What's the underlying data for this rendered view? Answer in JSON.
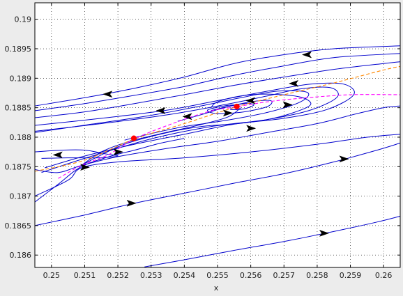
{
  "chart_data": {
    "type": "line",
    "title": "",
    "xlabel": "x",
    "ylabel": "",
    "xlim": [
      0.2495,
      0.2605
    ],
    "ylim": [
      0.18579,
      0.19028
    ],
    "grid": true,
    "xticks": [
      "0.25",
      "0.251",
      "0.252",
      "0.253",
      "0.254",
      "0.255",
      "0.256",
      "0.257",
      "0.258",
      "0.259",
      "0.26"
    ],
    "yticks": [
      "0.186",
      "0.1865",
      "0.187",
      "0.1875",
      "0.188",
      "0.1885",
      "0.189",
      "0.1895",
      "0.19"
    ],
    "colors": {
      "trajectory": "#0000cc",
      "orange_dashed": "#ff8800",
      "magenta_dashed": "#ff00ff",
      "equilibrium": "#ff0000",
      "arrow": "#000000"
    },
    "series": [
      {
        "style": "trajectory",
        "points": [
          [
            0.2495,
            0.18853
          ],
          [
            0.251,
            0.18867
          ],
          [
            0.2525,
            0.18883
          ],
          [
            0.254,
            0.18902
          ],
          [
            0.2555,
            0.18925
          ],
          [
            0.257,
            0.1894
          ],
          [
            0.2585,
            0.1895
          ],
          [
            0.2605,
            0.18955
          ]
        ]
      },
      {
        "style": "trajectory",
        "points": [
          [
            0.2495,
            0.18845
          ],
          [
            0.251,
            0.18857
          ],
          [
            0.2525,
            0.18871
          ],
          [
            0.254,
            0.18886
          ],
          [
            0.2555,
            0.18905
          ],
          [
            0.257,
            0.18921
          ],
          [
            0.2585,
            0.18935
          ],
          [
            0.2605,
            0.18942
          ]
        ]
      },
      {
        "style": "trajectory",
        "points": [
          [
            0.2495,
            0.18833
          ],
          [
            0.251,
            0.18843
          ],
          [
            0.2525,
            0.18857
          ],
          [
            0.254,
            0.18872
          ],
          [
            0.2555,
            0.18888
          ],
          [
            0.257,
            0.18902
          ],
          [
            0.2585,
            0.18915
          ],
          [
            0.26,
            0.18925
          ],
          [
            0.2605,
            0.18928
          ]
        ]
      },
      {
        "style": "trajectory",
        "points": [
          [
            0.2495,
            0.1882
          ],
          [
            0.2515,
            0.18832
          ],
          [
            0.2535,
            0.18846
          ],
          [
            0.255,
            0.18862
          ],
          [
            0.2565,
            0.18878
          ],
          [
            0.2578,
            0.1889
          ],
          [
            0.2588,
            0.1889
          ],
          [
            0.2591,
            0.18872
          ],
          [
            0.2583,
            0.18847
          ],
          [
            0.257,
            0.18832
          ],
          [
            0.2555,
            0.18822
          ],
          [
            0.254,
            0.18805
          ],
          [
            0.2525,
            0.18788
          ],
          [
            0.251,
            0.18768
          ],
          [
            0.2498,
            0.18748
          ]
        ]
      },
      {
        "style": "trajectory",
        "points": [
          [
            0.2495,
            0.1881
          ],
          [
            0.2515,
            0.18823
          ],
          [
            0.2535,
            0.18838
          ],
          [
            0.2552,
            0.18855
          ],
          [
            0.2565,
            0.1887
          ],
          [
            0.2575,
            0.18882
          ],
          [
            0.2584,
            0.18884
          ],
          [
            0.2586,
            0.18868
          ],
          [
            0.2578,
            0.18846
          ],
          [
            0.2565,
            0.1883
          ],
          [
            0.2548,
            0.18818
          ],
          [
            0.2532,
            0.188
          ],
          [
            0.2518,
            0.18778
          ],
          [
            0.2505,
            0.18755
          ],
          [
            0.2497,
            0.1874
          ]
        ]
      },
      {
        "style": "trajectory",
        "points": [
          [
            0.2495,
            0.18808
          ],
          [
            0.2512,
            0.18822
          ],
          [
            0.253,
            0.18837
          ],
          [
            0.2545,
            0.18853
          ],
          [
            0.2558,
            0.18868
          ],
          [
            0.2568,
            0.18878
          ],
          [
            0.2577,
            0.18876
          ],
          [
            0.2575,
            0.1886
          ],
          [
            0.2565,
            0.18842
          ],
          [
            0.2552,
            0.18828
          ],
          [
            0.254,
            0.18818
          ],
          [
            0.253,
            0.18806
          ],
          [
            0.2522,
            0.18795
          ]
        ]
      },
      {
        "style": "trajectory",
        "points": [
          [
            0.2538,
            0.18827
          ],
          [
            0.2545,
            0.18838
          ],
          [
            0.2552,
            0.1885
          ],
          [
            0.256,
            0.1886
          ],
          [
            0.2566,
            0.18862
          ],
          [
            0.2565,
            0.18852
          ],
          [
            0.2558,
            0.18843
          ],
          [
            0.255,
            0.1884
          ],
          [
            0.2547,
            0.18846
          ],
          [
            0.2552,
            0.18853
          ],
          [
            0.2556,
            0.18855
          ]
        ]
      },
      {
        "style": "trajectory",
        "points": [
          [
            0.2548,
            0.18845
          ],
          [
            0.2553,
            0.18852
          ],
          [
            0.2558,
            0.18857
          ],
          [
            0.2561,
            0.18855
          ],
          [
            0.2558,
            0.18848
          ],
          [
            0.2554,
            0.18847
          ],
          [
            0.2555,
            0.18852
          ]
        ]
      },
      {
        "style": "trajectory",
        "points": [
          [
            0.2509,
            0.18752
          ],
          [
            0.2515,
            0.18775
          ],
          [
            0.2523,
            0.18792
          ],
          [
            0.2533,
            0.18806
          ],
          [
            0.2544,
            0.1882
          ],
          [
            0.2553,
            0.18834
          ],
          [
            0.2557,
            0.1885
          ]
        ]
      },
      {
        "style": "trajectory",
        "points": [
          [
            0.2495,
            0.18775
          ],
          [
            0.2503,
            0.18778
          ],
          [
            0.251,
            0.18778
          ],
          [
            0.2516,
            0.18772
          ],
          [
            0.252,
            0.18768
          ],
          [
            0.2514,
            0.18765
          ],
          [
            0.2505,
            0.18765
          ],
          [
            0.2497,
            0.18764
          ]
        ]
      },
      {
        "style": "trajectory",
        "points": [
          [
            0.2509,
            0.18752
          ],
          [
            0.2515,
            0.1877
          ],
          [
            0.2523,
            0.1879
          ],
          [
            0.2535,
            0.18808
          ],
          [
            0.2545,
            0.18818
          ],
          [
            0.2556,
            0.18823
          ],
          [
            0.2565,
            0.1883
          ],
          [
            0.2572,
            0.1884
          ],
          [
            0.2578,
            0.18855
          ],
          [
            0.2575,
            0.18868
          ],
          [
            0.2566,
            0.18873
          ],
          [
            0.2557,
            0.1887
          ],
          [
            0.255,
            0.1886
          ],
          [
            0.2548,
            0.1885
          ]
        ]
      },
      {
        "style": "trajectory",
        "points": [
          [
            0.2495,
            0.18745
          ],
          [
            0.2502,
            0.1874
          ],
          [
            0.2509,
            0.18752
          ],
          [
            0.252,
            0.18767
          ],
          [
            0.2535,
            0.18781
          ],
          [
            0.255,
            0.18793
          ],
          [
            0.2565,
            0.18808
          ],
          [
            0.258,
            0.18823
          ],
          [
            0.2592,
            0.1884
          ],
          [
            0.26,
            0.1885
          ],
          [
            0.2605,
            0.18853
          ]
        ]
      },
      {
        "style": "trajectory",
        "points": [
          [
            0.2495,
            0.187
          ],
          [
            0.2505,
            0.18727
          ],
          [
            0.2509,
            0.18748
          ],
          [
            0.252,
            0.18758
          ],
          [
            0.254,
            0.18765
          ],
          [
            0.256,
            0.18775
          ],
          [
            0.258,
            0.18788
          ],
          [
            0.2595,
            0.188
          ],
          [
            0.2605,
            0.18805
          ]
        ]
      },
      {
        "style": "trajectory",
        "points": [
          [
            0.2495,
            0.1869
          ],
          [
            0.2502,
            0.1872
          ],
          [
            0.2509,
            0.1875
          ],
          [
            0.2518,
            0.18768
          ],
          [
            0.2525,
            0.18778
          ],
          [
            0.2533,
            0.1879
          ],
          [
            0.254,
            0.18798
          ]
        ]
      },
      {
        "style": "trajectory",
        "points": [
          [
            0.2495,
            0.1865
          ],
          [
            0.251,
            0.18668
          ],
          [
            0.2525,
            0.18688
          ],
          [
            0.254,
            0.18705
          ],
          [
            0.2555,
            0.18722
          ],
          [
            0.257,
            0.18738
          ],
          [
            0.2585,
            0.18758
          ],
          [
            0.2598,
            0.18778
          ],
          [
            0.2605,
            0.1879
          ]
        ]
      },
      {
        "style": "trajectory",
        "points": [
          [
            0.2528,
            0.1858
          ],
          [
            0.254,
            0.18592
          ],
          [
            0.2555,
            0.18608
          ],
          [
            0.257,
            0.18623
          ],
          [
            0.2585,
            0.1864
          ],
          [
            0.2598,
            0.18656
          ],
          [
            0.2605,
            0.18666
          ]
        ]
      },
      {
        "style": "orange_dashed",
        "points": [
          [
            0.2495,
            0.18742
          ],
          [
            0.251,
            0.18761
          ],
          [
            0.2525,
            0.18797
          ],
          [
            0.254,
            0.18823
          ],
          [
            0.2556,
            0.18852
          ],
          [
            0.257,
            0.18872
          ],
          [
            0.2585,
            0.18892
          ],
          [
            0.26,
            0.18914
          ],
          [
            0.2605,
            0.1892
          ]
        ]
      },
      {
        "style": "magenta_dashed",
        "points": [
          [
            0.2502,
            0.1873
          ],
          [
            0.2509,
            0.18752
          ],
          [
            0.2517,
            0.1877
          ],
          [
            0.2525,
            0.18797
          ],
          [
            0.2535,
            0.1882
          ],
          [
            0.2547,
            0.18843
          ],
          [
            0.2556,
            0.18852
          ],
          [
            0.2565,
            0.1886
          ],
          [
            0.2575,
            0.18866
          ],
          [
            0.259,
            0.18872
          ],
          [
            0.2605,
            0.18872
          ]
        ]
      }
    ],
    "equilibria": [
      [
        0.25248,
        0.18798
      ],
      [
        0.25558,
        0.18852
      ]
    ],
    "arrows": [
      {
        "at": [
          0.2577,
          0.1894
        ],
        "dir": "left"
      },
      {
        "at": [
          0.2517,
          0.18873
        ],
        "dir": "left"
      },
      {
        "at": [
          0.2573,
          0.18891
        ],
        "dir": "left"
      },
      {
        "at": [
          0.2533,
          0.18845
        ],
        "dir": "left"
      },
      {
        "at": [
          0.2541,
          0.18835
        ],
        "dir": "left"
      },
      {
        "at": [
          0.256,
          0.18862
        ],
        "dir": "left"
      },
      {
        "at": [
          0.2553,
          0.18841
        ],
        "dir": "right"
      },
      {
        "at": [
          0.2571,
          0.18855
        ],
        "dir": "right"
      },
      {
        "at": [
          0.256,
          0.18815
        ],
        "dir": "right"
      },
      {
        "at": [
          0.2502,
          0.1877
        ],
        "dir": "left"
      },
      {
        "at": [
          0.251,
          0.18749
        ],
        "dir": "right"
      },
      {
        "at": [
          0.252,
          0.18775
        ],
        "dir": "right"
      },
      {
        "at": [
          0.2524,
          0.18688
        ],
        "dir": "right"
      },
      {
        "at": [
          0.2588,
          0.18763
        ],
        "dir": "right"
      },
      {
        "at": [
          0.2582,
          0.18637
        ],
        "dir": "right"
      }
    ]
  }
}
